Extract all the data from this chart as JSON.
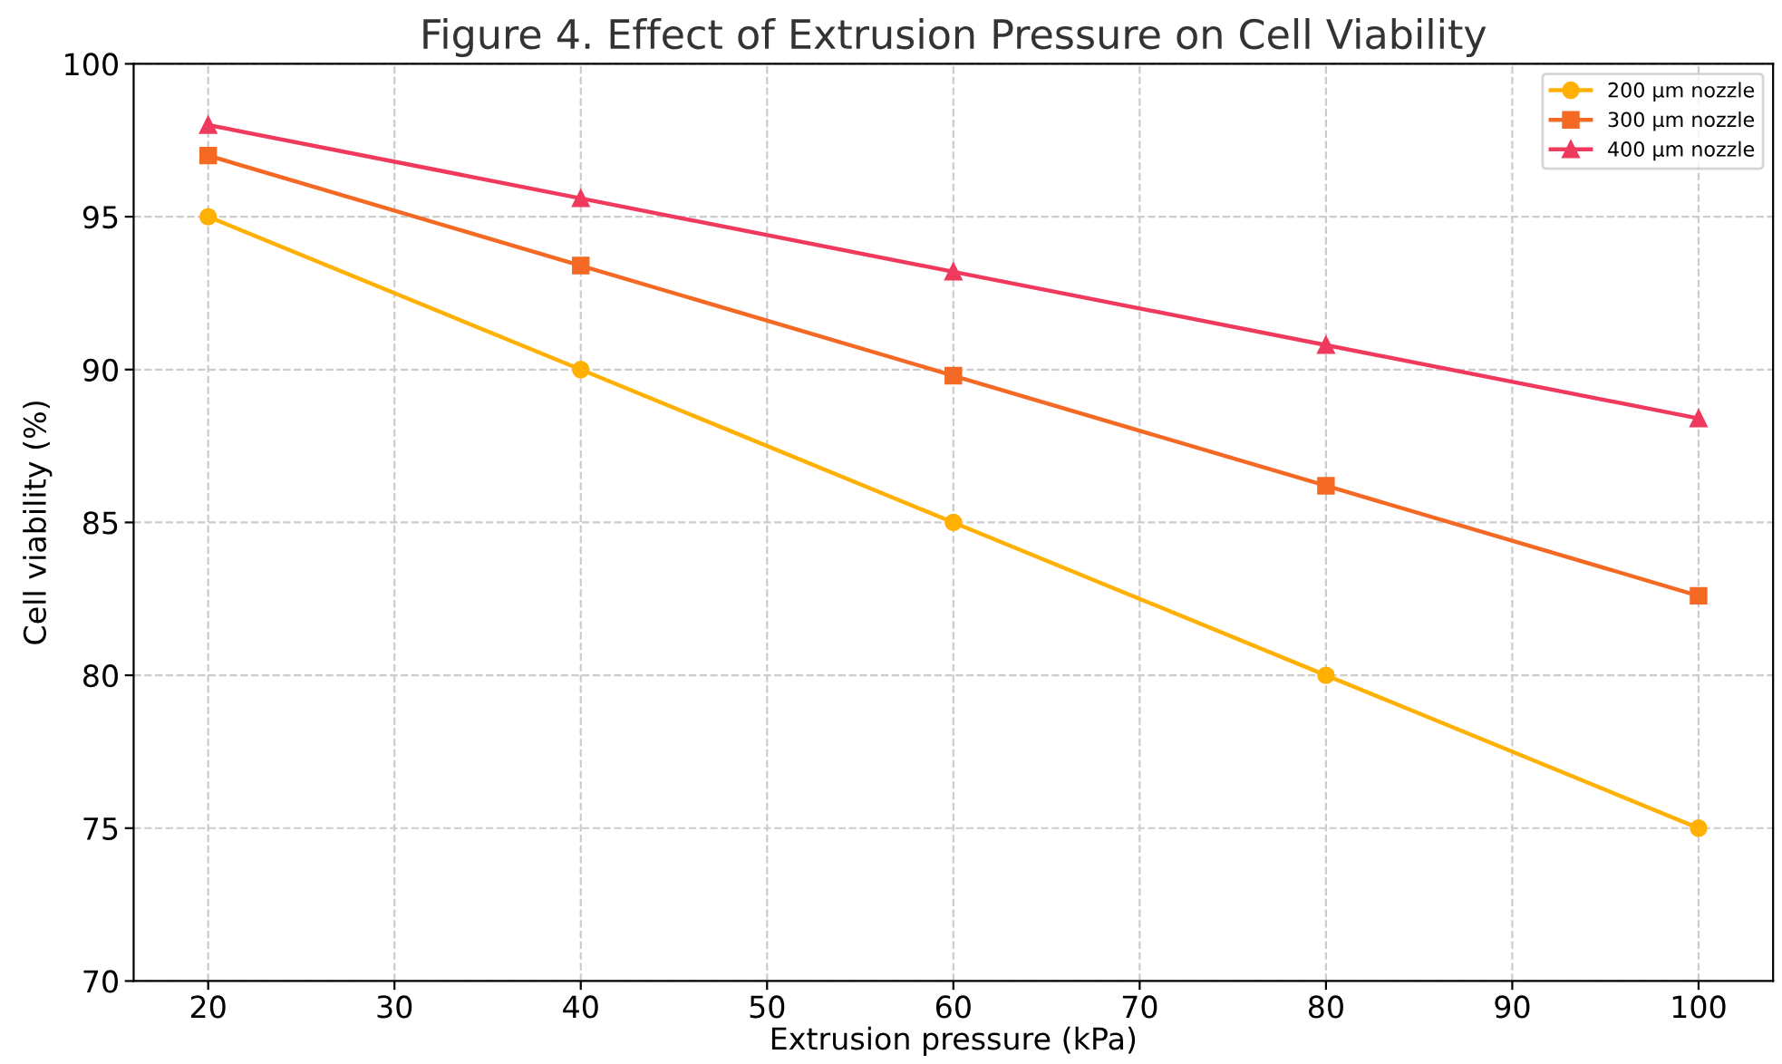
{
  "chart_data": {
    "type": "line",
    "title": "Figure 4. Effect of Extrusion Pressure on Cell Viability",
    "xlabel": "Extrusion pressure (kPa)",
    "ylabel": "Cell viability (%)",
    "x": [
      20,
      40,
      60,
      80,
      100
    ],
    "series": [
      {
        "name": "200 μm nozzle",
        "color": "#ffb000",
        "marker": "circle",
        "values": [
          95,
          90,
          85,
          80,
          75
        ]
      },
      {
        "name": "300 μm nozzle",
        "color": "#f46a25",
        "marker": "square",
        "values": [
          97,
          93.4,
          89.8,
          86.2,
          82.6
        ]
      },
      {
        "name": "400 μm nozzle",
        "color": "#ef3a5d",
        "marker": "triangle",
        "values": [
          98,
          95.6,
          93.2,
          90.8,
          88.4
        ]
      }
    ],
    "xlim": [
      16,
      104
    ],
    "xticks": [
      20,
      30,
      40,
      50,
      60,
      70,
      80,
      90,
      100
    ],
    "ylim": [
      70,
      100
    ],
    "yticks": [
      70,
      75,
      80,
      85,
      90,
      95,
      100
    ],
    "grid": true,
    "legend": "top right",
    "line_style": "solid"
  }
}
